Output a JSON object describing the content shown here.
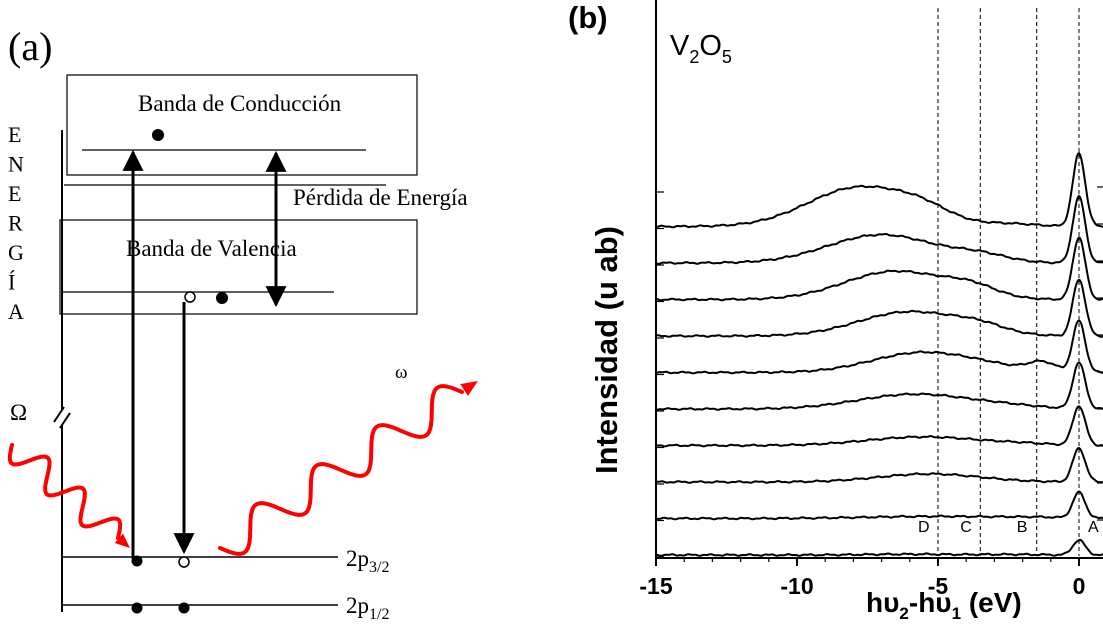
{
  "panel_a": {
    "label": "(a)",
    "axis_letters": [
      "E",
      "N",
      "E",
      "R",
      "G",
      "Í",
      "A"
    ],
    "conduction_band": "Banda de Conducción",
    "valence_band": "Banda de Valencia",
    "energy_loss": "Pérdida de Energía",
    "incident_photon": "Ω",
    "emitted_photon": "ω",
    "level_3_2": {
      "base": "2p",
      "sub": "3/2"
    },
    "level_1_2": {
      "base": "2p",
      "sub": "1/2"
    },
    "colors": {
      "photon": "#ff0000",
      "line": "#000000"
    }
  },
  "panel_b": {
    "label": "(b)",
    "compound": {
      "v": "V",
      "v_sub": "2",
      "o": "O",
      "o_sub": "5"
    },
    "ylabel": "Intensidad (u ab)",
    "xlabel": {
      "p1": "hυ",
      "s1": "2",
      "p2": "-hυ",
      "s2": "1",
      "unit": " (eV)"
    },
    "ticks": [
      "-15",
      "-10",
      "-5",
      "0"
    ],
    "markers": [
      {
        "label": "D",
        "x": -5.0
      },
      {
        "label": "C",
        "x": -3.5
      },
      {
        "label": "B",
        "x": -1.5
      },
      {
        "label": "A",
        "x": 0.0
      }
    ]
  },
  "chart_data": {
    "type": "line",
    "xlabel": "hυ2-hυ1 (eV)",
    "ylabel": "Intensidad (u ab)",
    "xlim": [
      -15,
      1.5
    ],
    "x_ticks": [
      -15,
      -10,
      -5,
      0
    ],
    "grid": false,
    "vertical_reference_lines": [
      -5.0,
      -3.5,
      -1.5,
      0.0
    ],
    "series": [
      {
        "peak_height": 0.55,
        "features": [
          [
            -6,
            0.03,
            1.5
          ],
          [
            -2.5,
            0.02,
            1.0
          ]
        ]
      },
      {
        "peak_height": 0.95,
        "features": [
          [
            -5,
            0.08,
            2.5
          ],
          [
            -1.5,
            0.03,
            1.0
          ]
        ]
      },
      {
        "peak_height": 1.25,
        "features": [
          [
            -5.3,
            0.3,
            1.8
          ]
        ]
      },
      {
        "peak_height": 1.45,
        "features": [
          [
            -5.5,
            0.32,
            2.0
          ],
          [
            -2,
            0.05,
            1.0
          ]
        ]
      },
      {
        "peak_height": 1.7,
        "features": [
          [
            -5.8,
            0.55,
            2.0
          ],
          [
            -2.5,
            0.08,
            1.2
          ]
        ]
      },
      {
        "peak_height": 1.9,
        "features": [
          [
            -5.5,
            0.75,
            1.8
          ],
          [
            -1.3,
            0.35,
            0.5
          ],
          [
            -3,
            0.1,
            1.0
          ]
        ]
      },
      {
        "peak_height": 2.1,
        "features": [
          [
            -6,
            0.9,
            1.8
          ],
          [
            -3.5,
            0.25,
            0.9
          ]
        ]
      },
      {
        "peak_height": 2.3,
        "features": [
          [
            -6.5,
            1.05,
            1.8
          ],
          [
            -3.8,
            0.35,
            0.9
          ]
        ]
      },
      {
        "peak_height": 2.45,
        "features": [
          [
            -7,
            1.05,
            1.9
          ],
          [
            -3.5,
            0.25,
            1.0
          ]
        ]
      },
      {
        "peak_height": 2.7,
        "features": [
          [
            -7.8,
            1.45,
            1.8
          ],
          [
            -5.5,
            0.4,
            1.0
          ],
          [
            -2.5,
            0.1,
            1.0
          ]
        ]
      }
    ]
  }
}
